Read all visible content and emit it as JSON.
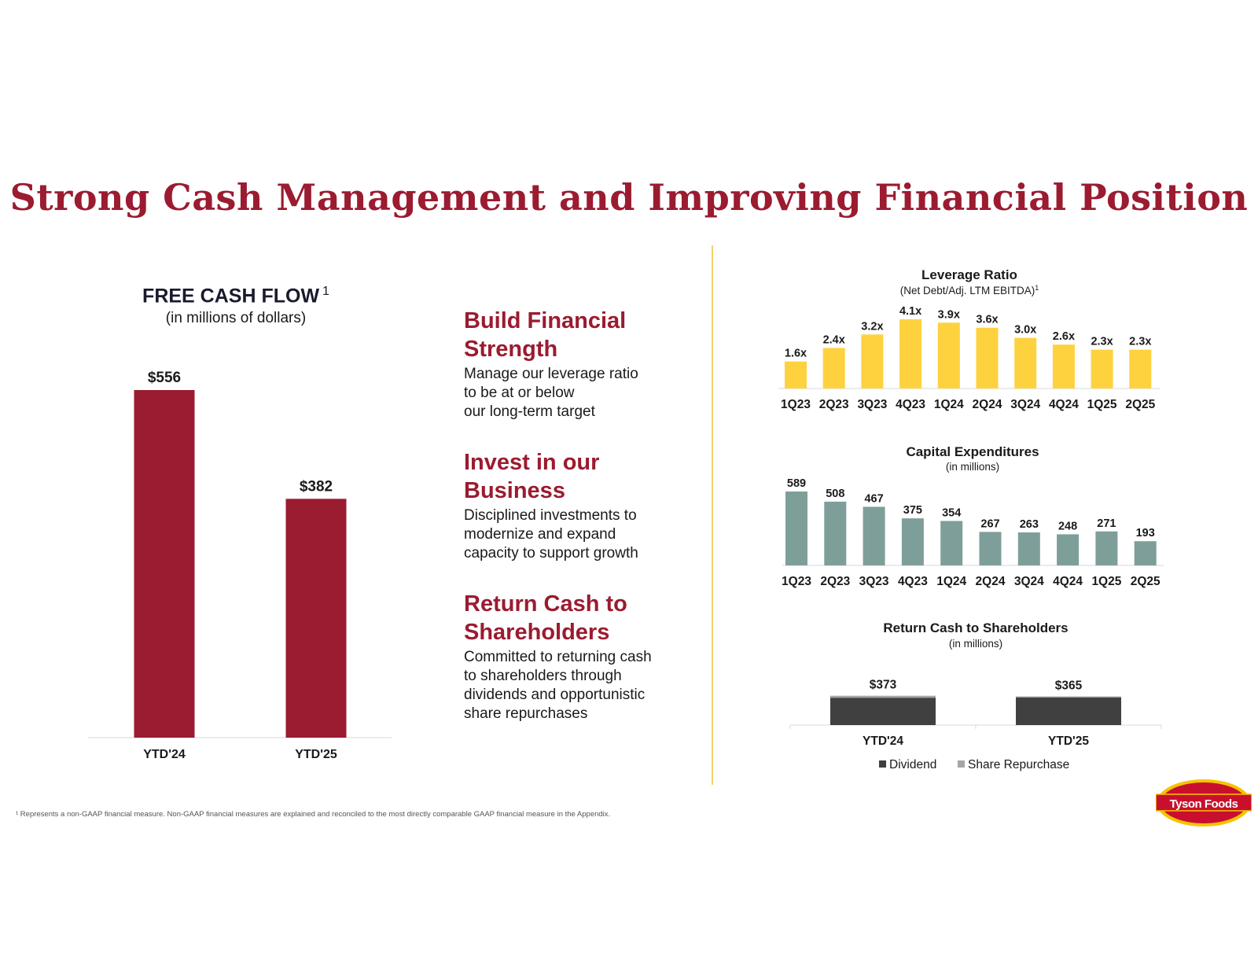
{
  "title": "Strong Cash Management and Improving Financial Position",
  "free_cash_flow": {
    "title": "FREE CASH FLOW",
    "footnote_mark": "1",
    "subtitle": "(in millions of dollars)"
  },
  "pillars": [
    {
      "heading": "Build Financial Strength",
      "body": "Manage our leverage ratio\nto be at or below\nour long-term target"
    },
    {
      "heading": "Invest in our Business",
      "body": "Disciplined investments to\nmodernize and expand\ncapacity to support growth"
    },
    {
      "heading": "Return Cash to Shareholders",
      "body": "Committed to returning cash\nto shareholders through\ndividends and opportunistic\nshare repurchases"
    }
  ],
  "leverage": {
    "title": "Leverage Ratio",
    "subtitle": "(Net Debt/Adj. LTM EBITDA)",
    "footnote_mark": "1"
  },
  "capex": {
    "title": "Capital Expenditures",
    "subtitle": "(in millions)"
  },
  "returns": {
    "title": "Return Cash to Shareholders",
    "subtitle": "(in millions)"
  },
  "footnote": "¹ Represents a non-GAAP financial measure. Non-GAAP financial measures are explained and reconciled to the most directly comparable GAAP financial measure in the Appendix.",
  "logo_text": "Tyson Foods",
  "colors": {
    "brand_red": "#9b1b30",
    "leverage_yellow": "#fed23e",
    "capex_teal": "#7e9e99",
    "dividend_dark": "#404040",
    "repurchase_gray": "#a6a6a6",
    "divider_gold": "#f3d36b"
  },
  "chart_data": [
    {
      "id": "free_cash_flow",
      "type": "bar",
      "title": "FREE CASH FLOW",
      "subtitle": "(in millions of dollars)",
      "categories": [
        "YTD'24",
        "YTD'25"
      ],
      "values": [
        556,
        382
      ],
      "data_labels": [
        "$556",
        "$382"
      ],
      "ylim": [
        0,
        556
      ],
      "grid": false
    },
    {
      "id": "leverage_ratio",
      "type": "bar",
      "title": "Leverage Ratio",
      "subtitle": "(Net Debt/Adj. LTM EBITDA)",
      "categories": [
        "1Q23",
        "2Q23",
        "3Q23",
        "4Q23",
        "1Q24",
        "2Q24",
        "3Q24",
        "4Q24",
        "1Q25",
        "2Q25"
      ],
      "values": [
        1.6,
        2.4,
        3.2,
        4.1,
        3.9,
        3.6,
        3.0,
        2.6,
        2.3,
        2.3
      ],
      "data_labels": [
        "1.6x",
        "2.4x",
        "3.2x",
        "4.1x",
        "3.9x",
        "3.6x",
        "3.0x",
        "2.6x",
        "2.3x",
        "2.3x"
      ],
      "ylim": [
        0,
        4.1
      ],
      "grid": false
    },
    {
      "id": "capital_expenditures",
      "type": "bar",
      "title": "Capital Expenditures",
      "subtitle": "(in millions)",
      "categories": [
        "1Q23",
        "2Q23",
        "3Q23",
        "4Q23",
        "1Q24",
        "2Q24",
        "3Q24",
        "4Q24",
        "1Q25",
        "2Q25"
      ],
      "values": [
        589,
        508,
        467,
        375,
        354,
        267,
        263,
        248,
        271,
        193
      ],
      "data_labels": [
        "589",
        "508",
        "467",
        "375",
        "354",
        "267",
        "263",
        "248",
        "271",
        "193"
      ],
      "ylim": [
        0,
        589
      ],
      "grid": false
    },
    {
      "id": "return_cash",
      "type": "bar",
      "stacked": true,
      "title": "Return Cash to Shareholders",
      "subtitle": "(in millions)",
      "categories": [
        "YTD'24",
        "YTD'25"
      ],
      "series": [
        {
          "name": "Dividend",
          "values": [
            348,
            350
          ]
        },
        {
          "name": "Share Repurchase",
          "values": [
            25,
            15
          ]
        }
      ],
      "totals": [
        373,
        365
      ],
      "data_labels": [
        "$373",
        "$365"
      ],
      "legend": "bottom",
      "grid": false
    }
  ]
}
